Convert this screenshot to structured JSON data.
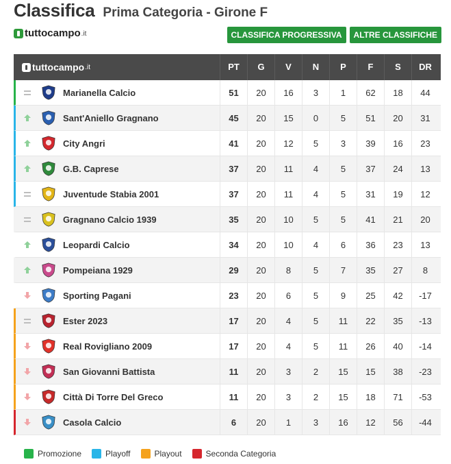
{
  "header": {
    "title": "Classifica",
    "subtitle": "Prima Categoria - Girone F"
  },
  "brand": {
    "name": "tuttocampo",
    "tld": ".it"
  },
  "buttons": {
    "progressive": "CLASSIFICA PROGRESSIVA",
    "others": "ALTRE CLASSIFICHE"
  },
  "columns": [
    "PT",
    "G",
    "V",
    "N",
    "P",
    "F",
    "S",
    "DR"
  ],
  "rows": [
    {
      "trend": "same",
      "zone": "promo",
      "team": "Marianella Calcio",
      "crest": "#1f3d8a",
      "stats": [
        "51",
        "20",
        "16",
        "3",
        "1",
        "62",
        "18",
        "44"
      ]
    },
    {
      "trend": "up",
      "zone": "play",
      "team": "Sant'Aniello Gragnano",
      "crest": "#2a5fb0",
      "stats": [
        "45",
        "20",
        "15",
        "0",
        "5",
        "51",
        "20",
        "31"
      ]
    },
    {
      "trend": "up",
      "zone": "play",
      "team": "City Angri",
      "crest": "#d3282e",
      "stats": [
        "41",
        "20",
        "12",
        "5",
        "3",
        "39",
        "16",
        "23"
      ]
    },
    {
      "trend": "up",
      "zone": "play",
      "team": "G.B. Caprese",
      "crest": "#2f8a3c",
      "stats": [
        "37",
        "20",
        "11",
        "4",
        "5",
        "37",
        "24",
        "13"
      ]
    },
    {
      "trend": "same",
      "zone": "play",
      "team": "Juventude Stabia 2001",
      "crest": "#e2b518",
      "stats": [
        "37",
        "20",
        "11",
        "4",
        "5",
        "31",
        "19",
        "12"
      ]
    },
    {
      "trend": "same",
      "zone": "none",
      "team": "Gragnano Calcio 1939",
      "crest": "#d9c11f",
      "stats": [
        "35",
        "20",
        "10",
        "5",
        "5",
        "41",
        "21",
        "20"
      ]
    },
    {
      "trend": "up",
      "zone": "none",
      "team": "Leopardi Calcio",
      "crest": "#2b4f9a",
      "stats": [
        "34",
        "20",
        "10",
        "4",
        "6",
        "36",
        "23",
        "13"
      ]
    },
    {
      "trend": "up",
      "zone": "none",
      "team": "Pompeiana 1929",
      "crest": "#c94a8c",
      "stats": [
        "29",
        "20",
        "8",
        "5",
        "7",
        "35",
        "27",
        "8"
      ]
    },
    {
      "trend": "down",
      "zone": "none",
      "team": "Sporting Pagani",
      "crest": "#3d7cc7",
      "stats": [
        "23",
        "20",
        "6",
        "5",
        "9",
        "25",
        "42",
        "-17"
      ]
    },
    {
      "trend": "same",
      "zone": "out",
      "team": "Ester 2023",
      "crest": "#b8232f",
      "stats": [
        "17",
        "20",
        "4",
        "5",
        "11",
        "22",
        "35",
        "-13"
      ]
    },
    {
      "trend": "down",
      "zone": "out",
      "team": "Real Rovigliano 2009",
      "crest": "#e0322a",
      "stats": [
        "17",
        "20",
        "4",
        "5",
        "11",
        "26",
        "40",
        "-14"
      ]
    },
    {
      "trend": "down",
      "zone": "out",
      "team": "San Giovanni Battista",
      "crest": "#c22f55",
      "stats": [
        "11",
        "20",
        "3",
        "2",
        "15",
        "15",
        "38",
        "-23"
      ]
    },
    {
      "trend": "down",
      "zone": "out",
      "team": "Città Di Torre Del Greco",
      "crest": "#c62a2a",
      "stats": [
        "11",
        "20",
        "3",
        "2",
        "15",
        "18",
        "71",
        "-53"
      ]
    },
    {
      "trend": "down",
      "zone": "rel",
      "team": "Casola Calcio",
      "crest": "#3a8fc6",
      "stats": [
        "6",
        "20",
        "1",
        "3",
        "16",
        "12",
        "56",
        "-44"
      ]
    }
  ],
  "legend": [
    {
      "label": "Promozione",
      "color": "#27b34a"
    },
    {
      "label": "Playoff",
      "color": "#29b5e8"
    },
    {
      "label": "Playout",
      "color": "#f5a21c"
    },
    {
      "label": "Seconda Categoria",
      "color": "#d6262d"
    }
  ]
}
